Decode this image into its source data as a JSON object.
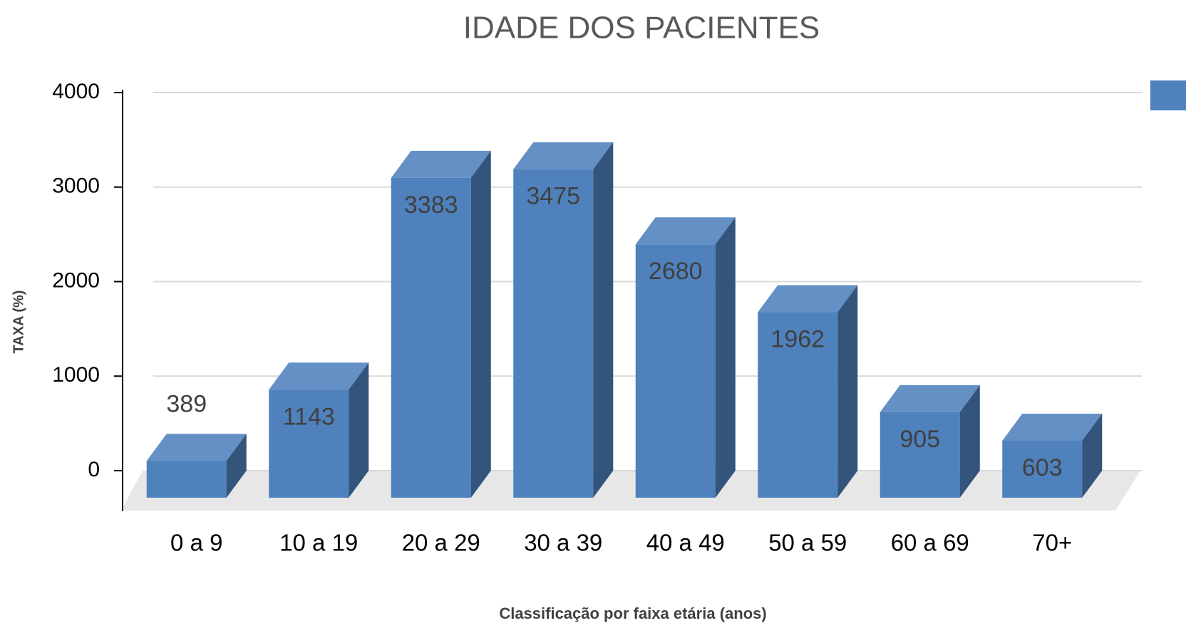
{
  "chart_data": {
    "type": "bar3d",
    "title": "IDADE DOS PACIENTES",
    "y_label": "TAXA (%)",
    "x_label": "Classificação por faixa etária (anos)",
    "categories": [
      "0 a 9",
      "10 a 19",
      "20 a 29",
      "30 a 39",
      "40 a 49",
      "50 a 59",
      "60 a 69",
      "70+"
    ],
    "values": [
      389,
      1143,
      3383,
      3475,
      2680,
      1962,
      905,
      603
    ],
    "color": "#4f81bd",
    "ylim": [
      0,
      4000
    ],
    "yticks": [
      0,
      1000,
      2000,
      3000,
      4000
    ],
    "grid": true
  }
}
